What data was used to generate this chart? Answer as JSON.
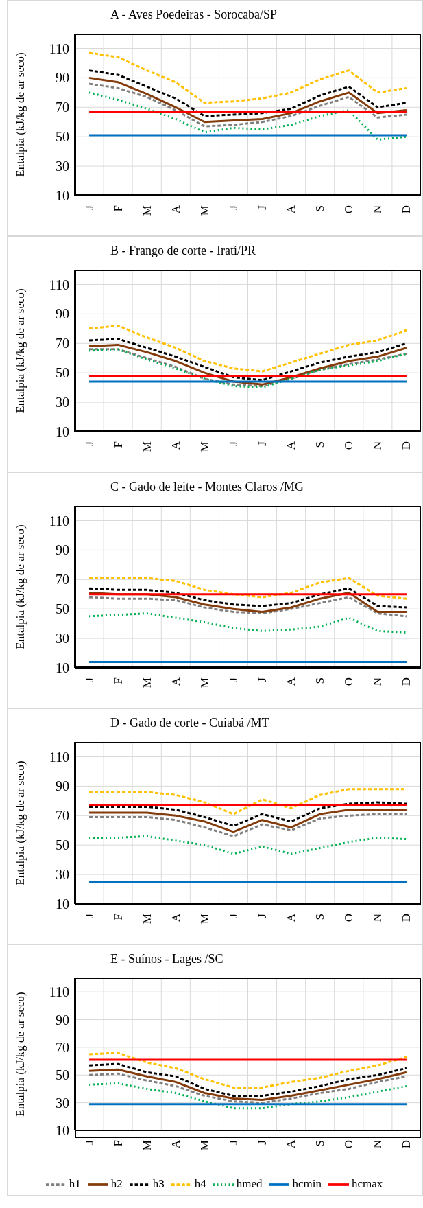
{
  "chart_data": [
    {
      "type": "line",
      "title": "A - Aves Poedeiras - Sorocaba/SP",
      "ylabel": "Entalpia (kJ/kg de ar seco)",
      "categories": [
        "J",
        "F",
        "M",
        "A",
        "M",
        "J",
        "J",
        "A",
        "S",
        "O",
        "N",
        "D"
      ],
      "ylim": [
        10,
        120
      ],
      "yticks": [
        10,
        30,
        50,
        70,
        90,
        110
      ],
      "grid": true,
      "legend": false,
      "marker": "none",
      "series": [
        {
          "color": "#808080",
          "line_style": "dashed",
          "values": [
            86,
            83,
            77,
            68,
            57,
            58,
            60,
            64,
            71,
            77,
            63,
            65
          ]
        },
        {
          "color": "#843c0c",
          "line_style": "solid",
          "values": [
            90,
            87,
            79,
            70,
            60,
            61,
            62,
            66,
            74,
            80,
            66,
            68
          ]
        },
        {
          "color": "#000000",
          "line_style": "dashed",
          "values": [
            95,
            92,
            84,
            76,
            64,
            65,
            66,
            69,
            78,
            84,
            70,
            73
          ]
        },
        {
          "color": "#ffc000",
          "line_style": "dashed",
          "values": [
            107,
            104,
            95,
            87,
            73,
            74,
            76,
            80,
            89,
            95,
            80,
            83
          ]
        },
        {
          "color": "#00b050",
          "line_style": "dotted",
          "values": [
            80,
            75,
            69,
            62,
            53,
            56,
            55,
            58,
            64,
            68,
            48,
            50
          ]
        },
        {
          "color": "#0070c0",
          "line_style": "solid",
          "values": [
            51,
            51,
            51,
            51,
            51,
            51,
            51,
            51,
            51,
            51,
            51,
            51
          ]
        },
        {
          "color": "#ff0000",
          "line_style": "solid",
          "values": [
            67,
            67,
            67,
            67,
            67,
            67,
            67,
            67,
            67,
            67,
            67,
            67
          ]
        }
      ]
    },
    {
      "type": "line",
      "title": "B - Frango de corte - Iratí/PR",
      "ylabel": "Entalpia (kJ/kg de ar seco)",
      "categories": [
        "J",
        "F",
        "M",
        "A",
        "M",
        "J",
        "J",
        "A",
        "S",
        "O",
        "N",
        "D"
      ],
      "ylim": [
        10,
        120
      ],
      "yticks": [
        10,
        30,
        50,
        70,
        90,
        110
      ],
      "grid": true,
      "legend": false,
      "marker": "none",
      "series": [
        {
          "color": "#808080",
          "line_style": "dashed",
          "values": [
            66,
            66,
            60,
            54,
            46,
            42,
            41,
            46,
            52,
            56,
            59,
            63
          ]
        },
        {
          "color": "#843c0c",
          "line_style": "solid",
          "values": [
            68,
            69,
            64,
            58,
            50,
            44,
            42,
            47,
            53,
            58,
            61,
            67
          ]
        },
        {
          "color": "#000000",
          "line_style": "dashed",
          "values": [
            72,
            73,
            67,
            61,
            54,
            47,
            45,
            51,
            57,
            61,
            64,
            70
          ]
        },
        {
          "color": "#ffc000",
          "line_style": "dashed",
          "values": [
            80,
            82,
            74,
            67,
            58,
            53,
            51,
            57,
            63,
            69,
            72,
            79
          ]
        },
        {
          "color": "#00b050",
          "line_style": "dotted",
          "values": [
            65,
            66,
            59,
            53,
            46,
            41,
            40,
            46,
            52,
            55,
            58,
            63
          ]
        },
        {
          "color": "#0070c0",
          "line_style": "solid",
          "values": [
            44,
            44,
            44,
            44,
            44,
            44,
            44,
            44,
            44,
            44,
            44,
            44
          ]
        },
        {
          "color": "#ff0000",
          "line_style": "solid",
          "values": [
            48,
            48,
            48,
            48,
            48,
            48,
            48,
            48,
            48,
            48,
            48,
            48
          ]
        }
      ]
    },
    {
      "type": "line",
      "title": "C - Gado de leite - Montes Claros /MG",
      "ylabel": "Entalpia (kJ/kg de ar seco)",
      "categories": [
        "J",
        "F",
        "M",
        "A",
        "M",
        "J",
        "J",
        "A",
        "S",
        "O",
        "N",
        "D"
      ],
      "ylim": [
        10,
        120
      ],
      "yticks": [
        10,
        30,
        50,
        70,
        90,
        110
      ],
      "grid": true,
      "legend": false,
      "marker": "none",
      "series": [
        {
          "color": "#808080",
          "line_style": "dashed",
          "values": [
            58,
            57,
            57,
            56,
            51,
            48,
            47,
            50,
            54,
            58,
            47,
            45
          ]
        },
        {
          "color": "#843c0c",
          "line_style": "solid",
          "values": [
            61,
            60,
            60,
            58,
            53,
            50,
            48,
            51,
            57,
            61,
            48,
            48
          ]
        },
        {
          "color": "#000000",
          "line_style": "dashed",
          "values": [
            64,
            63,
            63,
            61,
            56,
            53,
            52,
            54,
            60,
            64,
            52,
            51
          ]
        },
        {
          "color": "#ffc000",
          "line_style": "dashed",
          "values": [
            71,
            71,
            71,
            69,
            63,
            60,
            58,
            61,
            68,
            71,
            59,
            57
          ]
        },
        {
          "color": "#00b050",
          "line_style": "dotted",
          "values": [
            45,
            46,
            47,
            44,
            41,
            37,
            35,
            36,
            38,
            44,
            35,
            34
          ]
        },
        {
          "color": "#0070c0",
          "line_style": "solid",
          "values": [
            14,
            14,
            14,
            14,
            14,
            14,
            14,
            14,
            14,
            14,
            14,
            14
          ]
        },
        {
          "color": "#ff0000",
          "line_style": "solid",
          "values": [
            60,
            60,
            60,
            60,
            60,
            60,
            60,
            60,
            60,
            60,
            60,
            60
          ]
        }
      ]
    },
    {
      "type": "line",
      "title": "D - Gado de corte - Cuiabá /MT",
      "ylabel": "Entalpia (kJ/kg de ar seco)",
      "categories": [
        "J",
        "F",
        "M",
        "A",
        "M",
        "J",
        "J",
        "A",
        "S",
        "O",
        "N",
        "D"
      ],
      "ylim": [
        10,
        120
      ],
      "yticks": [
        10,
        30,
        50,
        70,
        90,
        110
      ],
      "grid": true,
      "legend": false,
      "marker": "none",
      "series": [
        {
          "color": "#808080",
          "line_style": "dashed",
          "values": [
            69,
            69,
            69,
            67,
            62,
            56,
            64,
            60,
            68,
            70,
            71,
            71
          ]
        },
        {
          "color": "#843c0c",
          "line_style": "solid",
          "values": [
            72,
            72,
            72,
            70,
            66,
            59,
            67,
            62,
            71,
            74,
            74,
            74
          ]
        },
        {
          "color": "#000000",
          "line_style": "dashed",
          "values": [
            76,
            76,
            76,
            74,
            69,
            63,
            71,
            66,
            75,
            78,
            79,
            78
          ]
        },
        {
          "color": "#ffc000",
          "line_style": "dashed",
          "values": [
            86,
            86,
            86,
            84,
            79,
            71,
            81,
            75,
            84,
            88,
            88,
            88
          ]
        },
        {
          "color": "#00b050",
          "line_style": "dotted",
          "values": [
            55,
            55,
            56,
            53,
            50,
            44,
            49,
            44,
            48,
            52,
            55,
            54
          ]
        },
        {
          "color": "#0070c0",
          "line_style": "solid",
          "values": [
            25,
            25,
            25,
            25,
            25,
            25,
            25,
            25,
            25,
            25,
            25,
            25
          ]
        },
        {
          "color": "#ff0000",
          "line_style": "solid",
          "values": [
            77,
            77,
            77,
            77,
            77,
            77,
            77,
            77,
            77,
            77,
            77,
            77
          ]
        }
      ]
    },
    {
      "type": "line",
      "title": "E - Suínos - Lages /SC",
      "ylabel": "Entalpia (kJ/kg de ar seco)",
      "categories": [
        "J",
        "F",
        "M",
        "A",
        "M",
        "J",
        "J",
        "A",
        "S",
        "O",
        "N",
        "D"
      ],
      "ylim": [
        10,
        120
      ],
      "yticks": [
        10,
        30,
        50,
        70,
        90,
        110
      ],
      "grid": true,
      "legend": "bottom",
      "marker": "none",
      "series": [
        {
          "name": "h1",
          "color": "#808080",
          "line_style": "dashed",
          "values": [
            50,
            51,
            46,
            42,
            35,
            31,
            30,
            33,
            37,
            40,
            45,
            49
          ]
        },
        {
          "name": "h2",
          "color": "#843c0c",
          "line_style": "solid",
          "values": [
            53,
            54,
            49,
            45,
            37,
            33,
            32,
            35,
            39,
            43,
            47,
            52
          ]
        },
        {
          "name": "h3",
          "color": "#000000",
          "line_style": "dashed",
          "values": [
            57,
            58,
            52,
            49,
            40,
            35,
            35,
            38,
            42,
            47,
            50,
            55
          ]
        },
        {
          "name": "h4",
          "color": "#ffc000",
          "line_style": "dashed",
          "values": [
            65,
            66,
            59,
            55,
            47,
            41,
            41,
            45,
            48,
            53,
            57,
            63
          ]
        },
        {
          "name": "hmed",
          "color": "#00b050",
          "line_style": "dotted",
          "values": [
            43,
            44,
            40,
            37,
            31,
            26,
            26,
            29,
            31,
            34,
            38,
            42
          ]
        },
        {
          "name": "hcmin",
          "color": "#0070c0",
          "line_style": "solid",
          "values": [
            29,
            29,
            29,
            29,
            29,
            29,
            29,
            29,
            29,
            29,
            29,
            29
          ]
        },
        {
          "name": "hcmax",
          "color": "#ff0000",
          "line_style": "solid",
          "values": [
            61,
            61,
            61,
            61,
            61,
            61,
            61,
            61,
            61,
            61,
            61,
            61
          ]
        }
      ]
    }
  ]
}
